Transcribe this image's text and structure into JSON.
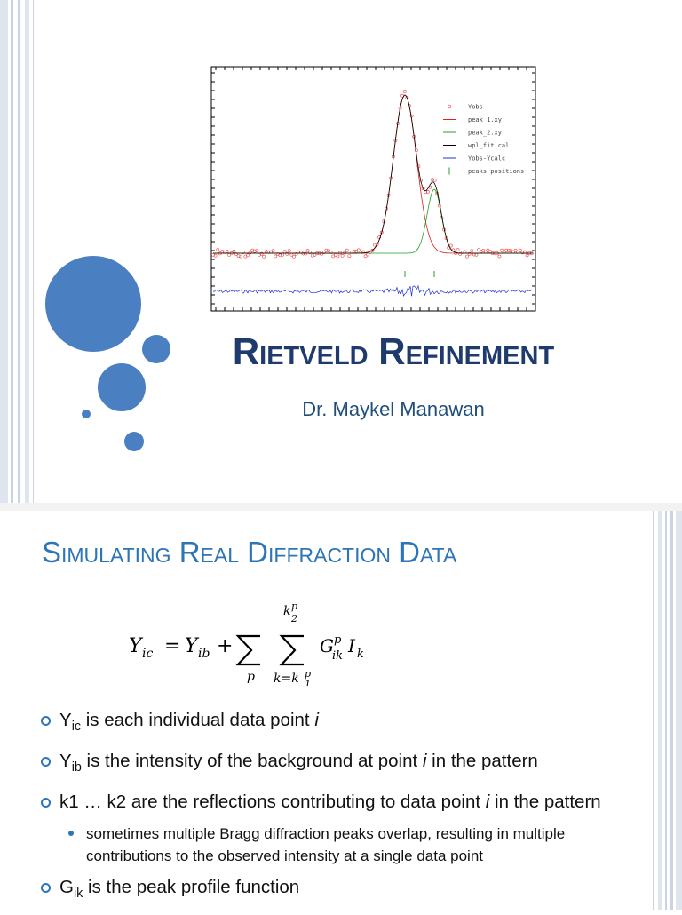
{
  "slide1": {
    "plot_legend": [
      "Yobs",
      "peak_1.xy",
      "peak_2.xy",
      "wpl_fit.cal",
      "Yobs-Ycalc",
      "peaks positions"
    ],
    "title": "Rietveld Refinement",
    "subtitle": "Dr. Maykel Manawan"
  },
  "slide2": {
    "title": "Simulating Real Diffraction Data",
    "formula": {
      "lhs": "Y",
      "lhs_sub": "ic",
      "eq": "=",
      "bg": "Y",
      "bg_sub": "ib",
      "plus": "+",
      "sum1_below": "p",
      "sum2_above": "k",
      "sum2_above_sup": "p",
      "sum2_above_sub": "2",
      "sum2_below": "k=k",
      "sum2_below_sup": "p",
      "sum2_below_sub": "1",
      "g": "G",
      "g_sup": "p",
      "g_sub": "ik",
      "i": "I",
      "i_sub": "k"
    },
    "bullets": [
      {
        "runs": [
          {
            "text": "Y"
          },
          {
            "sub": "ic"
          },
          {
            "text": " is each individual data point "
          },
          {
            "italic": "i"
          }
        ]
      },
      {
        "runs": [
          {
            "text": "Y"
          },
          {
            "sub": "ib"
          },
          {
            "text": " is the intensity of the background at point "
          },
          {
            "italic": "i"
          },
          {
            "text": " in the pattern"
          }
        ]
      },
      {
        "runs": [
          {
            "text": "k1 … k2 are the reflections contributing to data point "
          },
          {
            "italic": "i"
          },
          {
            "text": " in the pattern"
          }
        ],
        "children": [
          "sometimes multiple Bragg diffraction peaks overlap, resulting in multiple contributions to the observed intensity at a single data point"
        ]
      },
      {
        "runs": [
          {
            "text": "G"
          },
          {
            "sub": "ik"
          },
          {
            "text": " is the peak profile function"
          }
        ]
      }
    ]
  }
}
